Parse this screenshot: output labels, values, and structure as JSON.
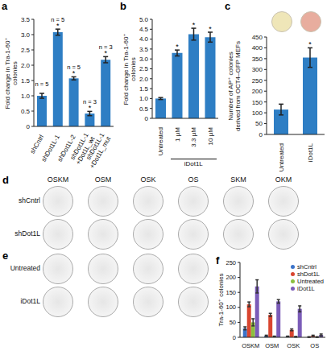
{
  "chart_data": [
    {
      "panel": "a",
      "type": "bar",
      "y_label": "Fold change in Tra-1-60⁺ colonies",
      "categories": [
        "shCntrl",
        "shDot1L-1",
        "shDot1L-2",
        "shDot1L-1 +Dot1L_wt",
        "shDot1L-1 +Dot1L_mut"
      ],
      "values": [
        1.0,
        3.08,
        1.57,
        0.42,
        2.18
      ],
      "errors": [
        0.08,
        0.1,
        0.05,
        0.07,
        0.1
      ],
      "n_labels": [
        "n = 5",
        "n = 5",
        "n = 5",
        "n = 3",
        "n = 3"
      ],
      "significant": [
        false,
        true,
        true,
        true,
        true
      ],
      "significance_mark": "*",
      "color": "#2e7ec4",
      "ylim": [
        0,
        3.5
      ],
      "yticks": [
        0,
        0.5,
        {
          "value": 1,
          "label": "1.0"
        },
        1.5,
        {
          "value": 2,
          "label": "2.0"
        },
        2.5,
        {
          "value": 3,
          "label": "3.0"
        },
        3.5
      ]
    },
    {
      "panel": "b",
      "type": "bar",
      "y_label": "Fold change in Tra-1-60⁺ colonies",
      "categories": [
        "Untreated",
        "1 µM",
        "3.3 µM",
        "10 µM"
      ],
      "group": {
        "label": "iDot1L",
        "categories": [
          "1 µM",
          "3.3 µM",
          "10 µM"
        ]
      },
      "values": [
        1.0,
        3.3,
        4.25,
        4.1
      ],
      "errors": [
        0.05,
        0.15,
        0.3,
        0.25
      ],
      "significant": [
        false,
        true,
        true,
        true
      ],
      "significance_mark": "*",
      "color": "#2e7ec4",
      "ylim": [
        0,
        5
      ],
      "yticks": [
        0,
        0.5,
        {
          "value": 1,
          "label": "1.0"
        },
        1.5,
        {
          "value": 2,
          "label": "2.0"
        },
        2.5,
        {
          "value": 3,
          "label": "3.0"
        },
        3.5,
        {
          "value": 4,
          "label": "4.0"
        },
        4.5,
        {
          "value": 5,
          "label": "5.0"
        }
      ]
    },
    {
      "panel": "c",
      "type": "bar",
      "y_label": "Number of AP⁺ colonies derived from OCT4–GFP MEFs",
      "categories": [
        "Untreated",
        "iDot1L"
      ],
      "values": [
        115,
        355
      ],
      "errors": [
        25,
        45
      ],
      "significant": [
        false,
        true
      ],
      "significance_mark": "*",
      "color": "#2e7ec4",
      "ylim": [
        0,
        450
      ],
      "yticks": [
        0,
        50,
        100,
        150,
        200,
        250,
        300,
        350,
        400,
        450
      ]
    },
    {
      "panel": "f",
      "type": "bar",
      "y_label": "Tra-1-60⁺ colonies",
      "categories": [
        "OSKM",
        "OSM",
        "OSK",
        "OS"
      ],
      "series": [
        {
          "name": "shCntrl",
          "color": "#3b73c9",
          "values": [
            30,
            5,
            3,
            1
          ],
          "errors": [
            5,
            2,
            1,
            1
          ]
        },
        {
          "name": "shDot1L",
          "color": "#d9452f",
          "values": [
            110,
            75,
            25,
            5
          ],
          "errors": [
            8,
            5,
            3,
            2
          ]
        },
        {
          "name": "Untreated",
          "color": "#8cbf3f",
          "values": [
            50,
            3,
            2,
            1
          ],
          "errors": [
            12,
            1,
            1,
            1
          ]
        },
        {
          "name": "iDot1L",
          "color": "#7b5cb8",
          "values": [
            170,
            120,
            95,
            8
          ],
          "errors": [
            22,
            6,
            10,
            3
          ]
        }
      ],
      "ylim": [
        0,
        250
      ],
      "yticks": [
        0,
        50,
        100,
        150,
        200,
        250
      ],
      "legend": "top-right"
    }
  ],
  "plate_panels": [
    {
      "panel": "d",
      "columns": [
        "OSKM",
        "OSM",
        "OSK",
        "OS",
        "SKM",
        "OKM"
      ],
      "rows": [
        "shCntrl",
        "shDot1L"
      ]
    },
    {
      "panel": "e",
      "rows": [
        "Untreated",
        "iDot1L"
      ],
      "plates": 4
    }
  ]
}
